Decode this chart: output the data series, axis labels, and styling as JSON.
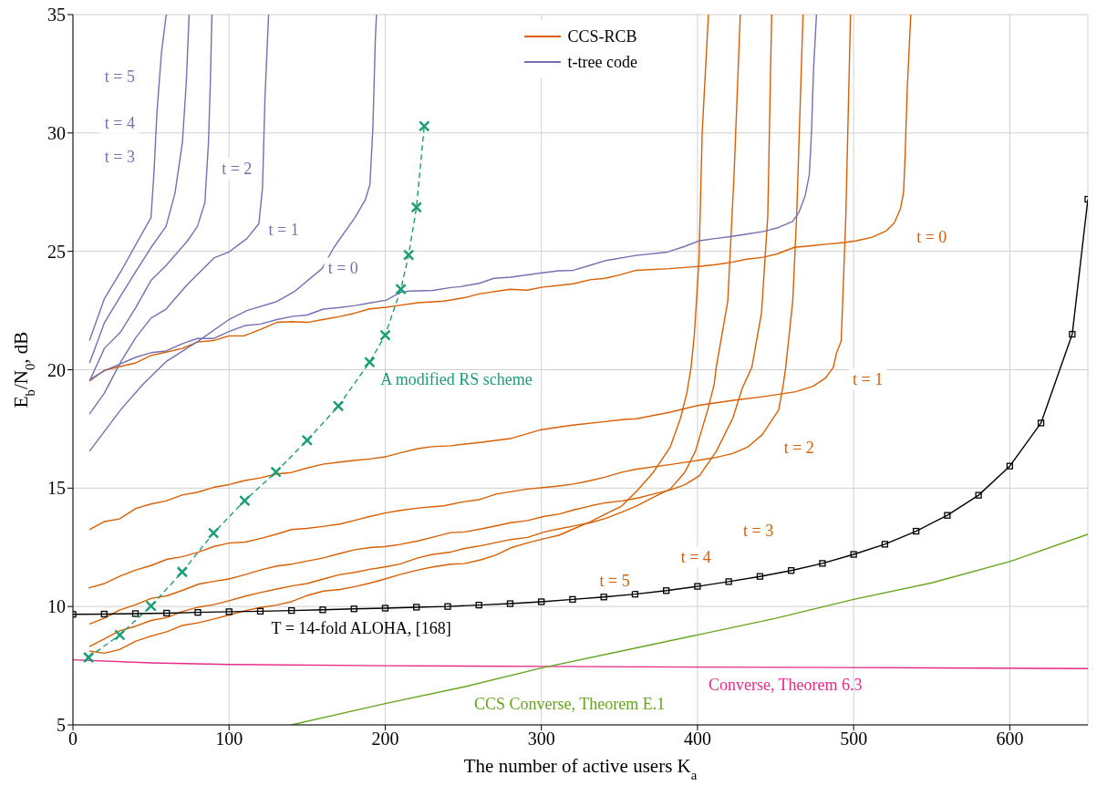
{
  "chart_data": {
    "type": "line",
    "xlabel": "The number of active users K$_{a}$",
    "ylabel": "E$_{b}$/N$_{0}$, dB",
    "xlim": [
      0,
      650
    ],
    "ylim": [
      5,
      35
    ],
    "xticks": [
      0,
      100,
      200,
      300,
      400,
      500,
      600
    ],
    "yticks": [
      5,
      10,
      15,
      20,
      25,
      30,
      35
    ],
    "grid": true,
    "legend": "top",
    "marker": "none",
    "line_style": "solid",
    "series": [
      {
        "name": "CCS-RCB",
        "color": "#d95f02",
        "x": [
          10.6,
          20.2,
          40.3,
          50,
          59.6,
          70,
          79.7,
          90,
          99.8,
          109.5,
          120,
          130.6,
          140,
          150,
          160,
          171,
          180,
          190,
          200.5,
          209,
          221,
          237.5,
          250.7,
          260,
          280,
          291,
          300,
          320.5,
          331,
          340.6,
          350,
          360.6,
          382,
          400.5,
          411.5,
          422,
          431.5,
          442,
          451,
          462,
          473,
          483.5,
          494,
          502,
          512,
          521,
          526,
          530,
          532,
          533,
          534.3,
          536.6
        ],
        "values": [
          19.52,
          19.98,
          20.29,
          20.6,
          20.74,
          20.9,
          21.17,
          21.23,
          21.43,
          21.43,
          21.7,
          22.0,
          22.03,
          22.0,
          22.12,
          22.25,
          22.38,
          22.57,
          22.64,
          22.72,
          22.83,
          22.9,
          23.04,
          23.2,
          23.4,
          23.36,
          23.48,
          23.63,
          23.8,
          23.86,
          24.0,
          24.2,
          24.27,
          24.36,
          24.44,
          24.54,
          24.67,
          24.75,
          24.89,
          25.17,
          25.24,
          25.31,
          25.37,
          25.45,
          25.6,
          25.87,
          26.2,
          26.8,
          27.5,
          29.1,
          31.8,
          35
        ]
      },
      {
        "color": "#d95f02",
        "x": [
          10.6,
          20.2,
          29.8,
          40.3,
          50,
          59.6,
          70,
          80,
          90,
          100,
          110,
          120,
          130.6,
          140,
          150,
          160,
          171,
          180,
          190,
          200,
          209,
          221,
          230,
          242,
          262,
          280,
          300,
          320,
          339.5,
          353,
          361,
          382,
          401,
          422,
          441.5,
          463,
          474,
          482,
          487,
          489,
          492,
          493,
          495,
          498
        ],
        "values": [
          13.25,
          13.59,
          13.7,
          14.14,
          14.33,
          14.46,
          14.71,
          14.83,
          15.03,
          15.15,
          15.32,
          15.43,
          15.6,
          15.66,
          15.85,
          16.01,
          16.1,
          16.17,
          16.23,
          16.32,
          16.48,
          16.67,
          16.75,
          16.79,
          16.94,
          17.09,
          17.47,
          17.66,
          17.8,
          17.9,
          17.93,
          18.2,
          18.5,
          18.7,
          18.86,
          19.07,
          19.3,
          19.65,
          20.1,
          20.7,
          21.2,
          22.9,
          26.5,
          35
        ]
      },
      {
        "color": "#d95f02",
        "x": [
          10,
          20.2,
          30.5,
          40.3,
          50,
          60.5,
          70,
          80.7,
          90,
          100,
          110.5,
          120,
          130.6,
          140,
          150,
          160,
          171,
          180,
          190,
          200,
          209,
          221,
          237.5,
          250.7,
          260,
          271,
          291,
          310,
          320.5,
          331,
          340.6,
          351.6,
          361,
          382,
          401,
          412,
          422.5,
          432,
          441.5,
          452,
          455,
          456.5,
          461,
          463.5,
          467.6
        ],
        "values": [
          10.78,
          10.97,
          11.29,
          11.54,
          11.73,
          12.0,
          12.1,
          12.3,
          12.53,
          12.68,
          12.72,
          12.87,
          13.06,
          13.25,
          13.3,
          13.38,
          13.48,
          13.63,
          13.8,
          13.95,
          14.05,
          14.16,
          14.25,
          14.43,
          14.51,
          14.75,
          14.96,
          15.08,
          15.17,
          15.31,
          15.46,
          15.67,
          15.8,
          15.99,
          16.18,
          16.3,
          16.46,
          16.73,
          17.26,
          18.3,
          19.4,
          20.1,
          22.9,
          26.5,
          35
        ]
      },
      {
        "color": "#d95f02",
        "x": [
          10.6,
          20.2,
          29.8,
          40.3,
          50,
          60.5,
          70.1,
          80.7,
          90.3,
          99.9,
          110.5,
          120.1,
          130.6,
          140.2,
          149.9,
          160.4,
          171,
          180.6,
          190.2,
          199.8,
          209.4,
          220.9,
          230.5,
          242,
          250.9,
          261.7,
          280.5,
          291.2,
          302,
          311.3,
          320.7,
          331.5,
          340.9,
          351.6,
          361,
          371.7,
          382.5,
          391.9,
          401.3,
          412,
          422.7,
          428.6,
          434.8,
          441,
          445,
          447.5
        ],
        "values": [
          9.26,
          9.51,
          9.85,
          10.08,
          10.34,
          10.46,
          10.68,
          10.95,
          11.06,
          11.16,
          11.35,
          11.54,
          11.71,
          11.79,
          11.92,
          12.05,
          12.24,
          12.4,
          12.49,
          12.53,
          12.62,
          12.77,
          12.93,
          13.12,
          13.15,
          13.28,
          13.54,
          13.63,
          13.81,
          13.9,
          14.08,
          14.25,
          14.38,
          14.46,
          14.57,
          14.75,
          14.92,
          15.14,
          15.53,
          16.55,
          17.97,
          19.21,
          20.1,
          22.4,
          26.5,
          35
        ]
      },
      {
        "color": "#d95f02",
        "x": [
          10.6,
          20.2,
          29.8,
          40.3,
          50,
          60.5,
          70.1,
          80.7,
          90.3,
          99.9,
          110.5,
          120.1,
          130.6,
          140.2,
          149.9,
          160.4,
          171,
          180.6,
          190.2,
          199.8,
          209.4,
          220.9,
          230.5,
          242,
          250.9,
          261.7,
          280.5,
          291.2,
          302,
          311.3,
          320.7,
          331.5,
          340.9,
          351.6,
          361,
          371.7,
          382.5,
          391.9,
          398.6,
          406.6,
          410.7,
          412,
          419.4,
          423.4,
          427.4
        ],
        "values": [
          8.31,
          8.63,
          8.97,
          9.17,
          9.41,
          9.54,
          9.79,
          9.98,
          10.08,
          10.24,
          10.44,
          10.59,
          10.74,
          10.87,
          10.97,
          11.16,
          11.35,
          11.44,
          11.57,
          11.67,
          11.79,
          12.05,
          12.2,
          12.3,
          12.45,
          12.57,
          12.83,
          12.92,
          13.15,
          13.28,
          13.4,
          13.54,
          13.72,
          13.99,
          14.25,
          14.61,
          14.96,
          15.67,
          16.55,
          18.32,
          19.39,
          20.1,
          22.9,
          28.2,
          35
        ]
      },
      {
        "color": "#d95f02",
        "x": [
          10.6,
          20.2,
          29.8,
          40.3,
          50,
          60.5,
          70.1,
          80.7,
          90.3,
          99.9,
          110.5,
          120.1,
          130.6,
          140.2,
          149.9,
          160.4,
          171,
          180.6,
          190.2,
          199.8,
          209.4,
          220.9,
          230.5,
          242,
          250.9,
          261.7,
          271.1,
          280.5,
          291.2,
          302,
          311.3,
          320.7,
          331.5,
          340.9,
          351.6,
          361,
          371.7,
          382.5,
          389.2,
          393.2,
          395.9,
          398,
          401,
          403,
          407
        ],
        "values": [
          8.12,
          8.03,
          8.18,
          8.54,
          8.75,
          8.94,
          9.2,
          9.32,
          9.47,
          9.64,
          9.83,
          9.96,
          10.06,
          10.21,
          10.46,
          10.65,
          10.72,
          10.84,
          10.99,
          11.16,
          11.35,
          11.54,
          11.67,
          11.79,
          11.81,
          11.98,
          12.18,
          12.48,
          12.69,
          12.87,
          13.01,
          13.28,
          13.58,
          13.9,
          14.25,
          14.87,
          15.67,
          16.73,
          17.97,
          19.03,
          20.1,
          21.5,
          24.7,
          30,
          35
        ]
      },
      {
        "name": "t-tree code",
        "color": "#7570b3",
        "x": [
          10.6,
          20.2,
          40.3,
          50,
          59.6,
          70.1,
          79.7,
          90.3,
          99.9,
          110.5,
          120.1,
          130.6,
          140.2,
          149.9,
          160.4,
          171,
          180.6,
          190.2,
          200.8,
          209.4,
          215.2,
          230.5,
          242,
          248.2,
          260.2,
          269.6,
          280.3,
          300.4,
          311.1,
          320.5,
          331.2,
          340.5,
          360.6,
          380.7,
          391.4,
          401.3,
          411.4,
          422.1,
          431.5,
          442.2,
          451.6,
          460.9,
          465,
          469,
          471.6,
          473,
          474.3,
          476.2
        ],
        "values": [
          19.58,
          19.96,
          20.53,
          20.72,
          20.79,
          21.1,
          21.32,
          21.32,
          21.61,
          21.87,
          21.93,
          22.12,
          22.25,
          22.31,
          22.56,
          22.63,
          22.71,
          22.82,
          22.94,
          23.26,
          23.32,
          23.35,
          23.47,
          23.51,
          23.65,
          23.86,
          23.91,
          24.09,
          24.18,
          24.2,
          24.41,
          24.6,
          24.83,
          24.97,
          25.2,
          25.45,
          25.54,
          25.63,
          25.73,
          25.84,
          26.0,
          26.26,
          26.65,
          27.36,
          28.24,
          30.0,
          32.65,
          35
        ]
      },
      {
        "color": "#7570b3",
        "x": [
          10.6,
          30.7,
          45.1,
          59.6,
          80.7,
          99.9,
          111.4,
          130.6,
          142.2,
          159.5,
          167.1,
          180.6,
          187.3,
          190.2,
          192.1,
          193.7,
          194.4
        ],
        "values": [
          16.56,
          18.32,
          19.4,
          20.34,
          21.23,
          22.12,
          22.5,
          22.88,
          23.32,
          24.27,
          25.16,
          26.43,
          27.19,
          27.82,
          30.23,
          34.03,
          35
        ]
      },
      {
        "color": "#7570b3",
        "x": [
          10.6,
          20.2,
          30.7,
          40.3,
          50,
          59.6,
          73,
          90.3,
          99.9,
          111.4,
          119.1,
          121.4,
          123,
          125.3
        ],
        "values": [
          18.13,
          19.02,
          20.34,
          21.36,
          22.18,
          22.56,
          23.58,
          24.72,
          24.97,
          25.54,
          26.17,
          27.7,
          31.5,
          35
        ]
      },
      {
        "color": "#7570b3",
        "x": [
          10.6,
          20.2,
          30.7,
          40.3,
          50,
          59.6,
          73,
          79.7,
          84.5,
          86.8,
          88,
          89
        ],
        "values": [
          19.52,
          20.91,
          21.61,
          22.63,
          23.77,
          24.4,
          25.41,
          26.05,
          27.06,
          29.6,
          32.13,
          35
        ]
      },
      {
        "color": "#7570b3",
        "x": [
          10.6,
          20.2,
          30.7,
          40.3,
          50,
          59.6,
          65.3,
          70.1,
          72.6,
          74.4
        ],
        "values": [
          20.28,
          21.99,
          23.13,
          24.15,
          25.16,
          26.05,
          27.44,
          29.6,
          32.13,
          35
        ]
      },
      {
        "color": "#7570b3",
        "x": [
          10.6,
          20.2,
          30.7,
          40.3,
          50,
          51.9,
          53.8,
          56.7,
          59.6,
          60.1
        ],
        "values": [
          21.23,
          23.01,
          24.15,
          25.29,
          26.43,
          28.33,
          30.86,
          33.4,
          34.92,
          35
        ]
      },
      {
        "color": "#1b9e77",
        "line_style": "dashed",
        "marker": "cross",
        "x": [
          10,
          30,
          50,
          70,
          90,
          110,
          130,
          150,
          170,
          190,
          200,
          210,
          215,
          220,
          225
        ],
        "values": [
          7.85,
          8.8,
          10.02,
          11.46,
          13.1,
          14.47,
          15.68,
          17.02,
          18.46,
          20.32,
          21.46,
          23.4,
          24.85,
          26.86,
          30.29
        ]
      },
      {
        "color": "#000000",
        "marker": "square",
        "x": [
          0,
          20,
          40,
          60,
          80,
          100,
          120,
          140,
          160,
          180,
          200,
          220,
          240,
          260,
          280,
          300,
          320,
          340,
          360,
          380,
          400,
          420,
          440,
          460,
          480,
          500,
          520,
          540,
          560,
          580,
          600,
          620,
          640,
          650
        ],
        "values": [
          9.67,
          9.68,
          9.7,
          9.72,
          9.75,
          9.78,
          9.8,
          9.83,
          9.86,
          9.9,
          9.93,
          9.97,
          10.0,
          10.06,
          10.12,
          10.2,
          10.3,
          10.4,
          10.52,
          10.67,
          10.85,
          11.05,
          11.27,
          11.52,
          11.82,
          12.2,
          12.63,
          13.18,
          13.85,
          14.7,
          15.93,
          17.75,
          21.5,
          27.2
        ]
      },
      {
        "color": "#e7298a",
        "x": [
          0,
          50,
          100,
          200,
          300,
          400,
          500,
          650
        ],
        "values": [
          7.75,
          7.62,
          7.55,
          7.5,
          7.47,
          7.44,
          7.42,
          7.38
        ]
      },
      {
        "color": "#66a61e",
        "x": [
          140,
          200,
          250,
          300,
          350,
          400,
          450,
          500,
          550,
          600,
          650
        ],
        "values": [
          5.0,
          5.9,
          6.6,
          7.4,
          8.1,
          8.8,
          9.5,
          10.3,
          11.0,
          11.9,
          13.05
        ]
      }
    ],
    "annotations": [
      {
        "text": "t = 0",
        "x": 550,
        "y": 25.6
      },
      {
        "text": "t = 1",
        "x": 509,
        "y": 19.6
      },
      {
        "text": "t = 2",
        "x": 465,
        "y": 16.7
      },
      {
        "text": "t = 3",
        "x": 439,
        "y": 13.2
      },
      {
        "text": "t = 4",
        "x": 399,
        "y": 12.1
      },
      {
        "text": "t = 5",
        "x": 347,
        "y": 11.1
      },
      {
        "text": "t = 5",
        "x": 30,
        "y": 32.4
      },
      {
        "text": "t = 4",
        "x": 30,
        "y": 30.4
      },
      {
        "text": "t = 3",
        "x": 30,
        "y": 29.0
      },
      {
        "text": "t = 2",
        "x": 105,
        "y": 28.5
      },
      {
        "text": "t = 1",
        "x": 135,
        "y": 25.9
      },
      {
        "text": "t = 0",
        "x": 173,
        "y": 24.3
      },
      {
        "text": "A modified RS scheme",
        "x": 190,
        "y": 20.32
      },
      {
        "text": "T = 14-fold ALOHA, [168]",
        "x": 120,
        "y": 9.8
      },
      {
        "text": "Converse, Theorem 6.3",
        "x": 400,
        "y": 7.44
      },
      {
        "text": "CCS Converse, Theorem E.1",
        "x": 250,
        "y": 6.6
      }
    ]
  }
}
